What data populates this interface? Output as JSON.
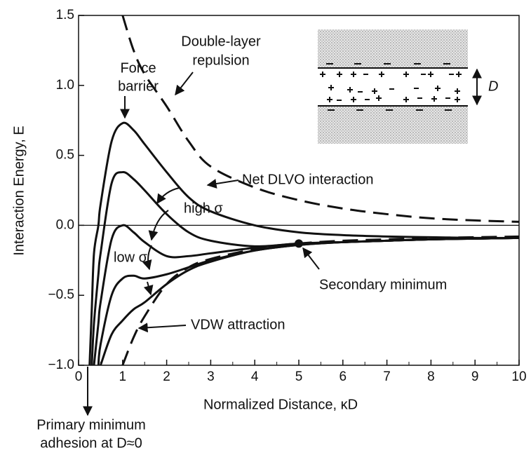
{
  "chart_data": {
    "type": "line",
    "x_label": "Normalized Distance, κD",
    "y_label": "Interaction Energy, E",
    "xlim": [
      0,
      10
    ],
    "ylim": [
      -1.0,
      1.5
    ],
    "xticks": [
      0,
      1,
      2,
      3,
      4,
      5,
      6,
      7,
      8,
      9,
      10
    ],
    "yticks": [
      {
        "value": -1.0,
        "label": "−1.0"
      },
      {
        "value": -0.5,
        "label": "−0.5"
      },
      {
        "value": 0.0,
        "label": "0.0"
      },
      0.5,
      {
        "value": 1.0,
        "label": "1.0"
      },
      1.5
    ],
    "hline": 0,
    "x": [
      0.25,
      0.3,
      0.35,
      0.45,
      0.5,
      0.75,
      1,
      1.25,
      1.5,
      2,
      2.5,
      3,
      4,
      5,
      6,
      7,
      8,
      9,
      10
    ],
    "series": [
      {
        "color": "#111111",
        "dash": true,
        "values": [
          null,
          null,
          null,
          null,
          null,
          null,
          1.5,
          1.25,
          1.08,
          0.85,
          0.6,
          0.42,
          0.27,
          0.18,
          0.12,
          0.08,
          0.05,
          0.035,
          0.025
        ]
      },
      {
        "color": "#111111",
        "dash": true,
        "values": [
          null,
          null,
          null,
          null,
          null,
          null,
          -1.0,
          -0.8,
          -0.65,
          -0.42,
          -0.3,
          -0.24,
          -0.17,
          -0.13,
          -0.11,
          -0.1,
          -0.09,
          -0.085,
          -0.08
        ]
      },
      {
        "color": "#111111",
        "dash": false,
        "values": [
          -1.0,
          -0.6,
          -0.2,
          0.0,
          0.15,
          0.6,
          0.73,
          0.68,
          0.58,
          0.38,
          0.2,
          0.1,
          0.0,
          -0.05,
          -0.07,
          -0.08,
          -0.085,
          -0.09,
          -0.09
        ]
      },
      {
        "color": "#111111",
        "dash": false,
        "values": [
          null,
          -1.0,
          -0.7,
          -0.35,
          -0.2,
          0.3,
          0.38,
          0.33,
          0.25,
          0.08,
          -0.05,
          -0.11,
          -0.15,
          -0.13,
          -0.12,
          -0.11,
          -0.1,
          -0.095,
          -0.09
        ]
      },
      {
        "color": "#111111",
        "dash": false,
        "values": [
          null,
          null,
          -1.0,
          -0.7,
          -0.55,
          -0.1,
          0.0,
          -0.05,
          -0.12,
          -0.22,
          -0.22,
          -0.2,
          -0.16,
          -0.13,
          -0.12,
          -0.11,
          -0.1,
          -0.095,
          -0.09
        ]
      },
      {
        "color": "#111111",
        "dash": false,
        "values": [
          null,
          null,
          null,
          -1.0,
          -0.85,
          -0.5,
          -0.38,
          -0.36,
          -0.38,
          -0.35,
          -0.3,
          -0.25,
          -0.18,
          -0.14,
          -0.12,
          -0.11,
          -0.1,
          -0.095,
          -0.09
        ]
      },
      {
        "color": "#111111",
        "dash": false,
        "values": [
          null,
          null,
          null,
          null,
          -1.0,
          -0.78,
          -0.68,
          -0.6,
          -0.55,
          -0.42,
          -0.32,
          -0.26,
          -0.18,
          -0.14,
          -0.12,
          -0.11,
          -0.1,
          -0.095,
          -0.09
        ]
      }
    ],
    "point": {
      "x": 5,
      "y": -0.13
    },
    "annotations": {
      "repulsion": [
        "Double-layer",
        "repulsion"
      ],
      "barrier": [
        "Force",
        "barrier"
      ],
      "net": "Net DLVO interaction",
      "high": "high σ",
      "low": "low σ",
      "secondary": "Secondary minimum",
      "vdw": "VDW attraction",
      "primary": [
        "Primary minimum",
        "adhesion at D≈0"
      ],
      "separation": "D"
    }
  }
}
